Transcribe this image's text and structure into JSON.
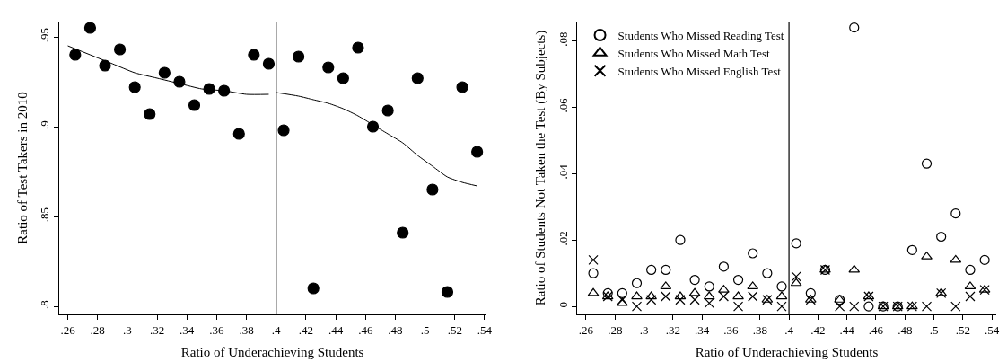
{
  "chart_data": [
    {
      "type": "scatter",
      "xlabel": "Ratio of Underachieving Students",
      "ylabel": "Ratio of Test Takers in 2010",
      "xlim": [
        0.254,
        0.541
      ],
      "ylim": [
        0.7955,
        0.9585
      ],
      "xticks": [
        {
          "value": 0.26,
          "label": ".26"
        },
        {
          "value": 0.28,
          "label": ".28"
        },
        {
          "value": 0.3,
          "label": ".3"
        },
        {
          "value": 0.32,
          "label": ".32"
        },
        {
          "value": 0.34,
          "label": ".34"
        },
        {
          "value": 0.36,
          "label": ".36"
        },
        {
          "value": 0.38,
          "label": ".38"
        },
        {
          "value": 0.4,
          "label": ".4"
        },
        {
          "value": 0.42,
          "label": ".42"
        },
        {
          "value": 0.44,
          "label": ".44"
        },
        {
          "value": 0.46,
          "label": ".46"
        },
        {
          "value": 0.48,
          "label": ".48"
        },
        {
          "value": 0.5,
          "label": ".5"
        },
        {
          "value": 0.52,
          "label": ".52"
        },
        {
          "value": 0.54,
          "label": ".54"
        }
      ],
      "yticks": [
        {
          "value": 0.8,
          "label": ".8"
        },
        {
          "value": 0.85,
          "label": ".85"
        },
        {
          "value": 0.9,
          "label": ".9"
        },
        {
          "value": 0.95,
          "label": ".95"
        }
      ],
      "legend": false,
      "ref_lines": [
        {
          "axis": "x",
          "value": 0.4,
          "color": "#000000"
        }
      ],
      "series": [
        {
          "type": "scatter",
          "marker": "circle",
          "color": "#000000",
          "x": [
            0.265,
            0.275,
            0.285,
            0.295,
            0.305,
            0.315,
            0.325,
            0.335,
            0.345,
            0.355,
            0.365,
            0.375,
            0.385,
            0.395,
            0.405,
            0.415,
            0.425,
            0.435,
            0.445,
            0.455,
            0.465,
            0.475,
            0.485,
            0.495,
            0.505,
            0.515,
            0.525,
            0.535
          ],
          "values": [
            0.94,
            0.955,
            0.934,
            0.943,
            0.922,
            0.907,
            0.93,
            0.925,
            0.912,
            0.921,
            0.92,
            0.896,
            0.94,
            0.935,
            0.898,
            0.939,
            0.81,
            0.933,
            0.927,
            0.944,
            0.9,
            0.909,
            0.841,
            0.927,
            0.865,
            0.808,
            0.922,
            0.886
          ]
        },
        {
          "type": "line",
          "color": "#000000",
          "x": [
            0.26,
            0.275,
            0.29,
            0.305,
            0.32,
            0.335,
            0.35,
            0.365,
            0.38,
            0.395
          ],
          "values": [
            0.945,
            0.94,
            0.935,
            0.93,
            0.927,
            0.924,
            0.921,
            0.92,
            0.918,
            0.918
          ]
        },
        {
          "type": "line",
          "color": "#000000",
          "x": [
            0.4,
            0.415,
            0.425,
            0.435,
            0.445,
            0.455,
            0.465,
            0.475,
            0.485,
            0.495,
            0.505,
            0.515,
            0.525,
            0.535
          ],
          "values": [
            0.919,
            0.917,
            0.915,
            0.913,
            0.91,
            0.906,
            0.901,
            0.896,
            0.891,
            0.884,
            0.878,
            0.872,
            0.869,
            0.867
          ]
        }
      ]
    },
    {
      "type": "scatter",
      "xlabel": "Ratio of Underachieving Students",
      "ylabel": "Ratio of Students Not Taken the Test (By Subjects)",
      "xlim": [
        0.2538,
        0.543
      ],
      "ylim": [
        -0.0024,
        0.0858
      ],
      "xticks": [
        {
          "value": 0.26,
          "label": ".26"
        },
        {
          "value": 0.28,
          "label": ".28"
        },
        {
          "value": 0.3,
          "label": ".3"
        },
        {
          "value": 0.32,
          "label": ".32"
        },
        {
          "value": 0.34,
          "label": ".34"
        },
        {
          "value": 0.36,
          "label": ".36"
        },
        {
          "value": 0.38,
          "label": ".38"
        },
        {
          "value": 0.4,
          "label": ".4"
        },
        {
          "value": 0.42,
          "label": ".42"
        },
        {
          "value": 0.44,
          "label": ".44"
        },
        {
          "value": 0.46,
          "label": ".46"
        },
        {
          "value": 0.48,
          "label": ".48"
        },
        {
          "value": 0.5,
          "label": ".5"
        },
        {
          "value": 0.52,
          "label": ".52"
        },
        {
          "value": 0.54,
          "label": ".54"
        }
      ],
      "yticks": [
        0,
        {
          "value": 0.02,
          "label": ".02"
        },
        {
          "value": 0.04,
          "label": ".04"
        },
        {
          "value": 0.06,
          "label": ".06"
        },
        {
          "value": 0.08,
          "label": ".08"
        }
      ],
      "legend": "top left",
      "ref_lines": [
        {
          "axis": "x",
          "value": 0.4,
          "color": "#000000"
        }
      ],
      "x": [
        0.265,
        0.275,
        0.285,
        0.295,
        0.305,
        0.315,
        0.325,
        0.335,
        0.345,
        0.355,
        0.365,
        0.375,
        0.385,
        0.395,
        0.405,
        0.415,
        0.425,
        0.435,
        0.445,
        0.455,
        0.465,
        0.475,
        0.485,
        0.495,
        0.505,
        0.515,
        0.525,
        0.535
      ],
      "series": [
        {
          "name": "Students Who Missed Reading Test",
          "marker": "circle",
          "color": "#000000",
          "values": [
            0.01,
            0.004,
            0.004,
            0.007,
            0.011,
            0.011,
            0.02,
            0.008,
            0.006,
            0.012,
            0.008,
            0.016,
            0.01,
            0.006,
            0.019,
            0.004,
            0.011,
            0.002,
            0.084,
            0.0,
            0.0,
            0.0,
            0.017,
            0.043,
            0.021,
            0.028,
            0.011,
            0.014
          ]
        },
        {
          "name": "Students Who Missed Math Test",
          "marker": "triangle",
          "color": "#000000",
          "values": [
            0.004,
            0.003,
            0.001,
            0.003,
            0.003,
            0.006,
            0.003,
            0.004,
            0.003,
            0.005,
            0.003,
            0.006,
            0.002,
            0.003,
            0.007,
            0.002,
            0.011,
            0.002,
            0.011,
            0.003,
            0.0,
            0.0,
            0.0,
            0.015,
            0.004,
            0.014,
            0.006,
            0.005
          ]
        },
        {
          "name": "Students Who Missed English Test",
          "marker": "cross",
          "color": "#000000",
          "values": [
            0.014,
            0.003,
            0.002,
            0.0,
            0.002,
            0.003,
            0.002,
            0.002,
            0.001,
            0.003,
            0.0,
            0.003,
            0.002,
            0.0,
            0.009,
            0.002,
            0.011,
            0.0,
            0.0,
            0.003,
            0.0,
            0.0,
            0.0,
            0.0,
            0.004,
            0.0,
            0.003,
            0.005
          ]
        }
      ]
    }
  ]
}
